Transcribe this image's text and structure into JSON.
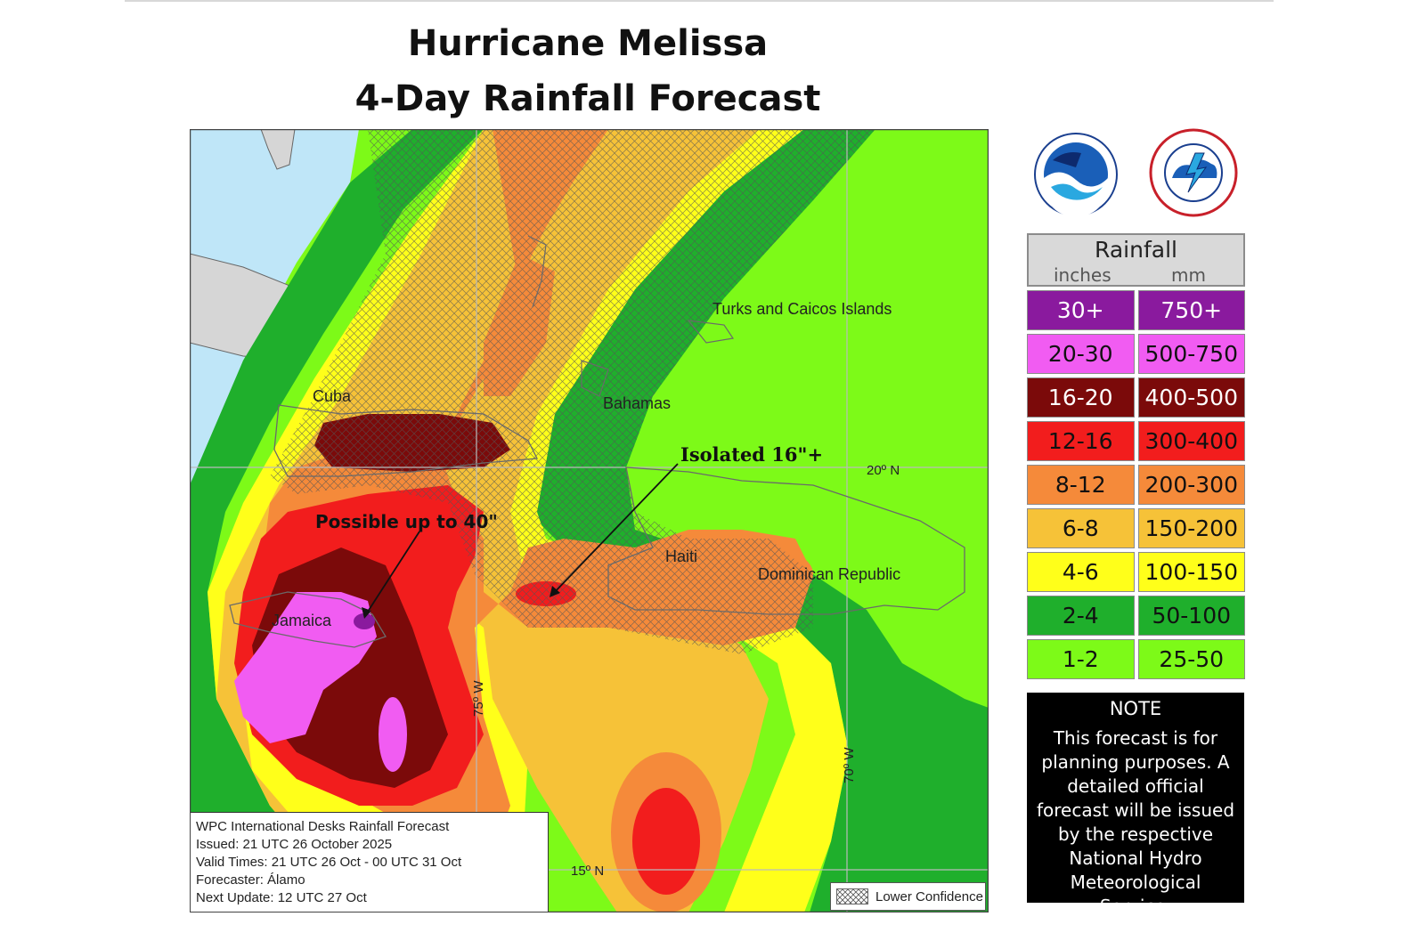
{
  "title": {
    "line1": "Hurricane Melissa",
    "line2": "4-Day Rainfall Forecast"
  },
  "map": {
    "labels": {
      "cuba": "Cuba",
      "bahamas": "Bahamas",
      "turks": "Turks and Caicos Islands",
      "haiti": "Haiti",
      "dominican": "Dominican Republic",
      "jamaica": "Jamaica",
      "lat20": "20º N",
      "lat15": "15º N",
      "lon75": "75º W",
      "lon70": "70º W"
    },
    "annotations": {
      "isolated": "Isolated 16\"+",
      "possible": "Possible up to 40\""
    }
  },
  "legend": {
    "title": "Rainfall",
    "unit_in": "inches",
    "unit_mm": "mm",
    "rows": [
      {
        "inches": "30+",
        "mm": "750+",
        "color": "#8a1a9e"
      },
      {
        "inches": "20-30",
        "mm": "500-750",
        "color": "#f15cf2"
      },
      {
        "inches": "16-20",
        "mm": "400-500",
        "color": "#7b0a0a"
      },
      {
        "inches": "12-16",
        "mm": "300-400",
        "color": "#f21d1d"
      },
      {
        "inches": "8-12",
        "mm": "200-300",
        "color": "#f58a3a"
      },
      {
        "inches": "6-8",
        "mm": "150-200",
        "color": "#f6c238"
      },
      {
        "inches": "4-6",
        "mm": "100-150",
        "color": "#ffff1a"
      },
      {
        "inches": "2-4",
        "mm": "50-100",
        "color": "#1faf2c"
      },
      {
        "inches": "1-2",
        "mm": "25-50",
        "color": "#7dfa18"
      }
    ]
  },
  "note": {
    "title": "NOTE",
    "body": "This forecast is for planning purposes. A detailed official forecast will be issued by the respective National Hydro Meteorological Service."
  },
  "info": {
    "line1": "WPC International Desks Rainfall Forecast",
    "line2": "Issued: 21 UTC 26 October 2025",
    "line3": "Valid Times: 21 UTC 26 Oct - 00 UTC 31 Oct",
    "line4": "Forecaster: Álamo",
    "line5": "Next Update: 12 UTC 27 Oct"
  },
  "confidence_label": "Lower Confidence",
  "colors": {
    "ocean": "#bfe6f8",
    "land_gray": "#d6d6d6",
    "magenta": "#f15cf2",
    "purple": "#8a1a9e",
    "maroon": "#7b0a0a",
    "red": "#f21d1d",
    "orange": "#f58a3a",
    "gold": "#f6c238",
    "yellow": "#ffff1a",
    "green": "#1faf2c",
    "lime": "#7dfa18"
  }
}
